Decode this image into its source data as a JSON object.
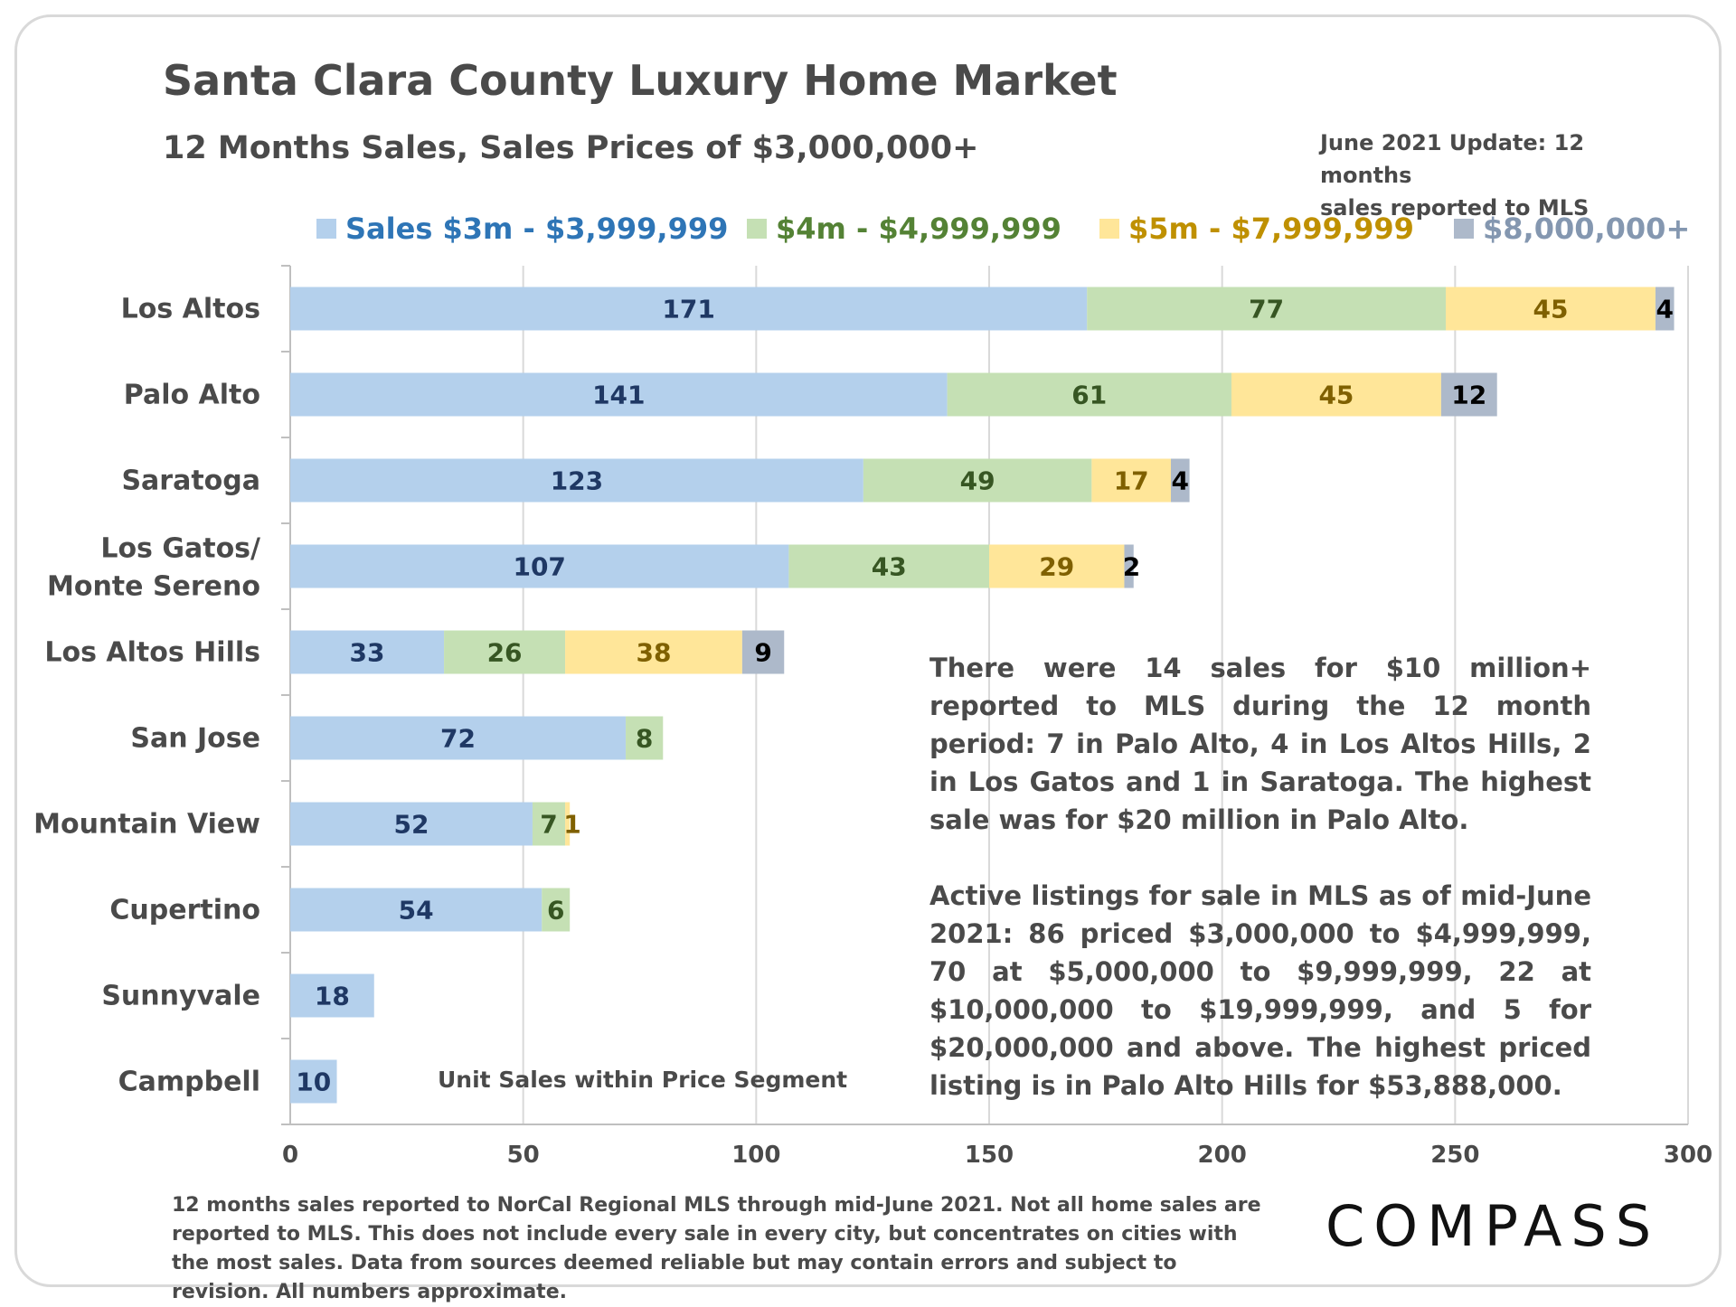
{
  "header": {
    "title": "Santa Clara County Luxury Home Market",
    "subtitle": "12 Months Sales, Sales Prices of $3,000,000+",
    "update_line1": "June 2021 Update: 12 months",
    "update_line2": "sales reported to MLS"
  },
  "note": {
    "p1": "There were 14 sales for $10 million+ reported to MLS during the 12 month period: 7 in Palo Alto, 4 in Los Altos Hills, 2 in Los Gatos and 1 in Saratoga. The highest sale was for $20 million in Palo Alto.",
    "p2": "Active listings for sale in MLS as of mid-June 2021: 86 priced $3,000,000 to $4,999,999, 70 at $5,000,000 to $9,999,999, 22 at $10,000,000 to $19,999,999, and 5 for $20,000,000 and above. The highest priced listing is in Palo Alto Hills for $53,888,000."
  },
  "footnote": "12 months sales reported to NorCal Regional MLS through mid-June 2021. Not all home sales are reported to MLS. This does not include every sale in every city, but concentrates on cities with the most sales. Data from sources deemed reliable but may contain errors and subject to revision. All numbers approximate.",
  "logo": "COMPASS",
  "chart_data": {
    "type": "bar",
    "orientation": "horizontal",
    "stacked": true,
    "title": "Santa Clara County Luxury Home Market",
    "xlabel": "Unit Sales within Price Segment",
    "xlim": [
      0,
      300
    ],
    "xticks": [
      0,
      50,
      100,
      150,
      200,
      250,
      300
    ],
    "grid": true,
    "legend_position": "top",
    "categories": [
      "Los Altos",
      "Palo Alto",
      "Saratoga",
      "Los Gatos/ Monte Sereno",
      "Los Altos Hills",
      "San Jose",
      "Mountain View",
      "Cupertino",
      "Sunnyvale",
      "Campbell"
    ],
    "series": [
      {
        "name": "Sales $3m - $3,999,999",
        "fill": "#b4d0ec",
        "text": "#1f3864",
        "legend_text": "#2e75b6",
        "values": [
          171,
          141,
          123,
          107,
          33,
          72,
          52,
          54,
          18,
          10
        ]
      },
      {
        "name": "$4m - $4,999,999",
        "fill": "#c5e0b4",
        "text": "#375623",
        "legend_text": "#548235",
        "values": [
          77,
          61,
          49,
          43,
          26,
          8,
          7,
          6,
          0,
          0
        ]
      },
      {
        "name": "$5m - $7,999,999",
        "fill": "#ffe699",
        "text": "#7f6000",
        "legend_text": "#bf9000",
        "values": [
          45,
          45,
          17,
          29,
          38,
          0,
          1,
          0,
          0,
          0
        ]
      },
      {
        "name": "$8,000,000+",
        "fill": "#adb9ca",
        "text": "#000000",
        "legend_text": "#8497b0",
        "values": [
          4,
          12,
          4,
          2,
          9,
          0,
          0,
          0,
          0,
          0
        ]
      }
    ]
  }
}
